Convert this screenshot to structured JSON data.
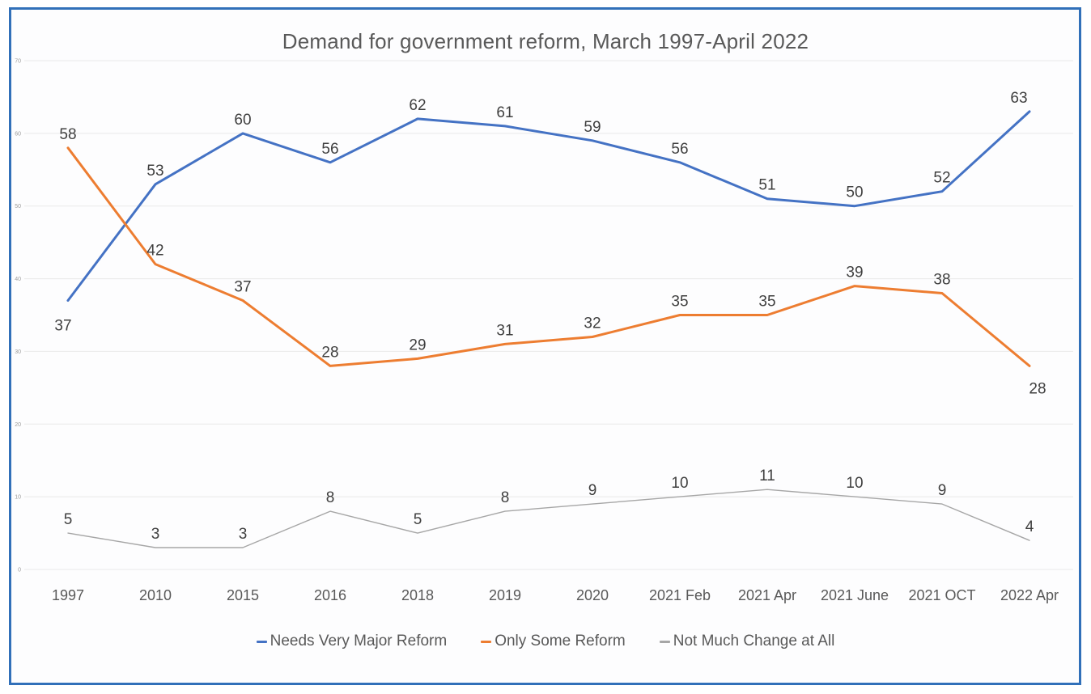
{
  "frame": {
    "border_color": "#3170b9"
  },
  "chart_data": {
    "type": "line",
    "title": "Demand for government reform, March 1997-April 2022",
    "categories": [
      "1997",
      "2010",
      "2015",
      "2016",
      "2018",
      "2019",
      "2020",
      "2021 Feb",
      "2021 Apr",
      "2021 June",
      "2021 OCT",
      "2022 Apr"
    ],
    "series": [
      {
        "name": "Needs Very Major Reform",
        "color": "#4472c4",
        "values": [
          37,
          53,
          60,
          56,
          62,
          61,
          59,
          56,
          51,
          50,
          52,
          63
        ]
      },
      {
        "name": "Only Some Reform",
        "color": "#ed7d31",
        "values": [
          58,
          42,
          37,
          28,
          29,
          31,
          32,
          35,
          35,
          39,
          38,
          28
        ]
      },
      {
        "name": "Not Much Change at All",
        "color": "#a6a6a6",
        "values": [
          5,
          3,
          3,
          8,
          5,
          8,
          9,
          10,
          11,
          10,
          9,
          4
        ]
      }
    ],
    "y_ticks": [
      0,
      10,
      20,
      30,
      40,
      50,
      60,
      70
    ],
    "ylim": [
      0,
      70
    ],
    "grid": true,
    "data_labels": true,
    "legend_position": "bottom"
  }
}
